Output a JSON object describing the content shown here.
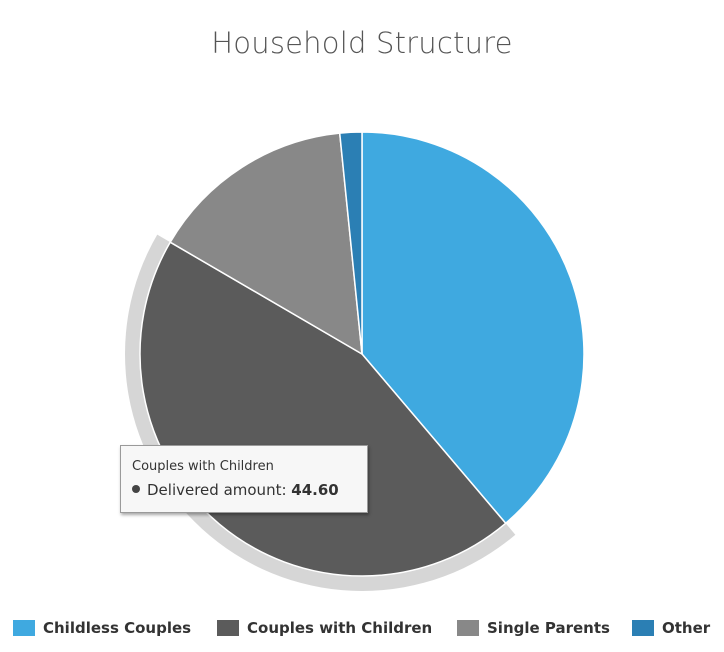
{
  "chart_data": {
    "type": "pie",
    "title": "Household Structure",
    "slices": [
      {
        "name": "Childless Couples",
        "value": 38.8,
        "color": "#3fa9e0"
      },
      {
        "name": "Couples with Children",
        "value": 44.6,
        "color": "#5b5b5b"
      },
      {
        "name": "Single Parents",
        "value": 15.0,
        "color": "#888888"
      },
      {
        "name": "Other",
        "value": 1.6,
        "color": "#2b7fb4"
      }
    ],
    "highlighted_slice": "Couples with Children",
    "legend_position": "bottom"
  },
  "tooltip": {
    "series_name": "Couples with Children",
    "label": "Delivered amount:",
    "value": "44.60"
  }
}
